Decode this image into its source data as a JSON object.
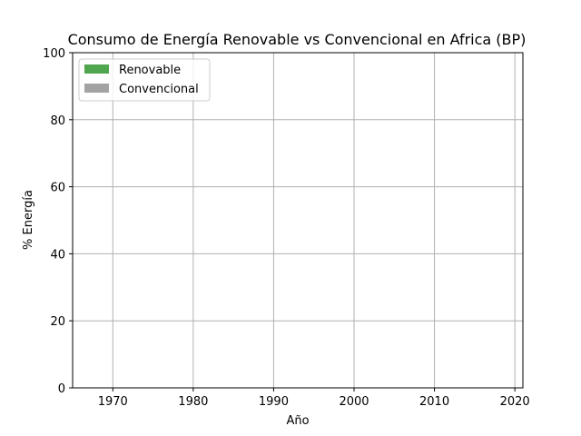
{
  "chart_data": {
    "type": "area",
    "title": "Consumo de Energía Renovable vs Convencional en Africa (BP)",
    "xlabel": "Año",
    "ylabel": "% Energía",
    "xlim": [
      1965,
      2021
    ],
    "ylim": [
      0,
      100
    ],
    "x_ticks": [
      "1970",
      "1980",
      "1990",
      "2000",
      "2010",
      "2020"
    ],
    "y_ticks": [
      "0",
      "20",
      "40",
      "60",
      "80",
      "100"
    ],
    "grid": true,
    "legend_position": "top-left",
    "series": [
      {
        "name": "Renovable",
        "color": "#4fa64f",
        "values": []
      },
      {
        "name": "Convencional",
        "color": "#a3a3a3",
        "values": []
      }
    ]
  }
}
